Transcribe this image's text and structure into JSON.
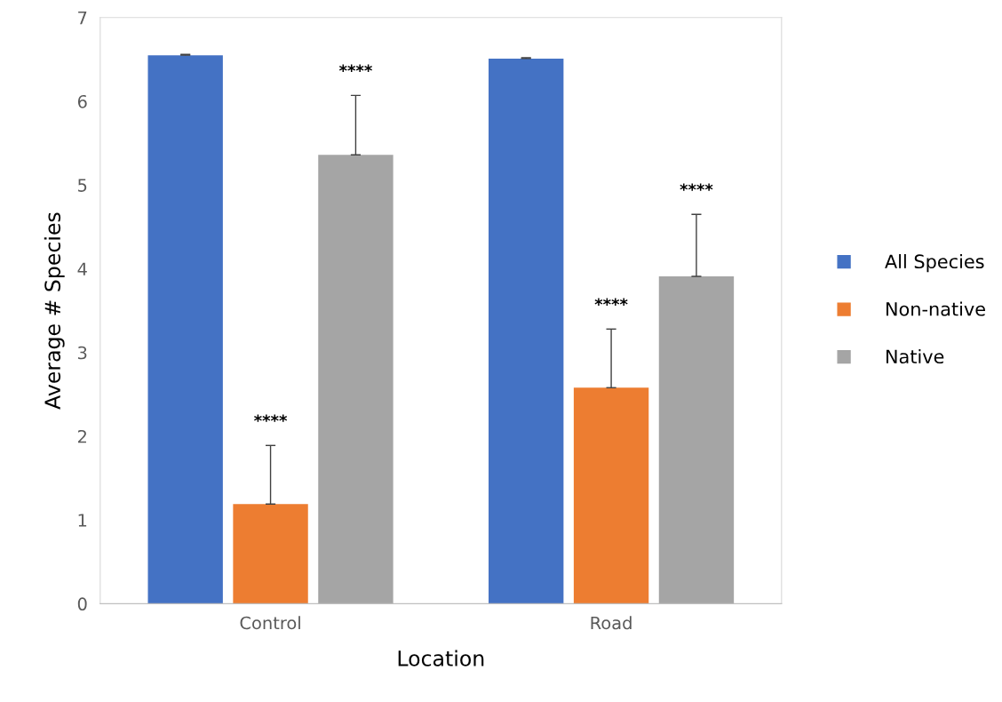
{
  "chart_data": {
    "type": "bar",
    "xlabel": "Location",
    "ylabel": "Average # Species",
    "categories": [
      "Control",
      "Road"
    ],
    "series": [
      {
        "name": "All Species",
        "color": "#4472c4",
        "values": [
          6.55,
          6.51
        ],
        "errors": [
          [
            6.55,
            6.56
          ],
          [
            6.51,
            6.52
          ]
        ]
      },
      {
        "name": "Non-native",
        "color": "#ed7d31",
        "values": [
          1.19,
          2.58
        ],
        "errors": [
          [
            1.19,
            1.89
          ],
          [
            2.58,
            3.28
          ]
        ]
      },
      {
        "name": "Native",
        "color": "#a5a5a5",
        "values": [
          5.36,
          3.91
        ],
        "errors": [
          [
            5.36,
            6.07
          ],
          [
            3.91,
            4.65
          ]
        ]
      }
    ],
    "annotations": [
      "****",
      "****",
      "****",
      "****"
    ],
    "ylim": [
      0,
      7
    ],
    "yticks": [
      0,
      1,
      2,
      3,
      4,
      5,
      6,
      7
    ],
    "grid": false,
    "legend": "right"
  }
}
